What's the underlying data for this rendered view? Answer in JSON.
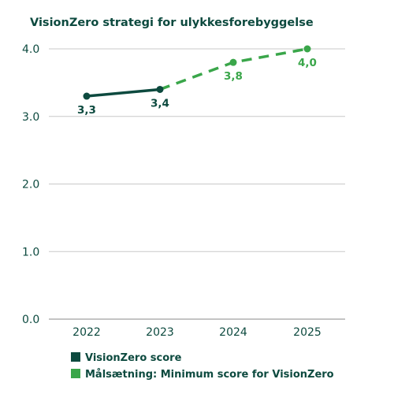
{
  "chart_data": {
    "type": "line",
    "title": "VisionZero strategi for ulykkesforebyggelse",
    "categories": [
      "2022",
      "2023",
      "2024",
      "2025"
    ],
    "ylim": [
      0,
      4
    ],
    "yticks": [
      "0.0",
      "1.0",
      "2.0",
      "3.0",
      "4.0"
    ],
    "grid": true,
    "legend_position": "bottom-left",
    "series": [
      {
        "name": "VisionZero score",
        "color": "#0d4a3f",
        "style": "solid",
        "points": [
          {
            "x": "2022",
            "y": 3.3,
            "label": "3,3"
          },
          {
            "x": "2023",
            "y": 3.4,
            "label": "3,4"
          }
        ]
      },
      {
        "name": "Målsætning: Minimum score for VisionZero",
        "color": "#3aa64a",
        "style": "dashed",
        "points": [
          {
            "x": "2023",
            "y": 3.4,
            "label": ""
          },
          {
            "x": "2024",
            "y": 3.8,
            "label": "3,8"
          },
          {
            "x": "2025",
            "y": 4.0,
            "label": "4,0"
          }
        ]
      }
    ],
    "colors": {
      "text": "#0d4a3f",
      "grid": "#c9c9c9"
    }
  }
}
